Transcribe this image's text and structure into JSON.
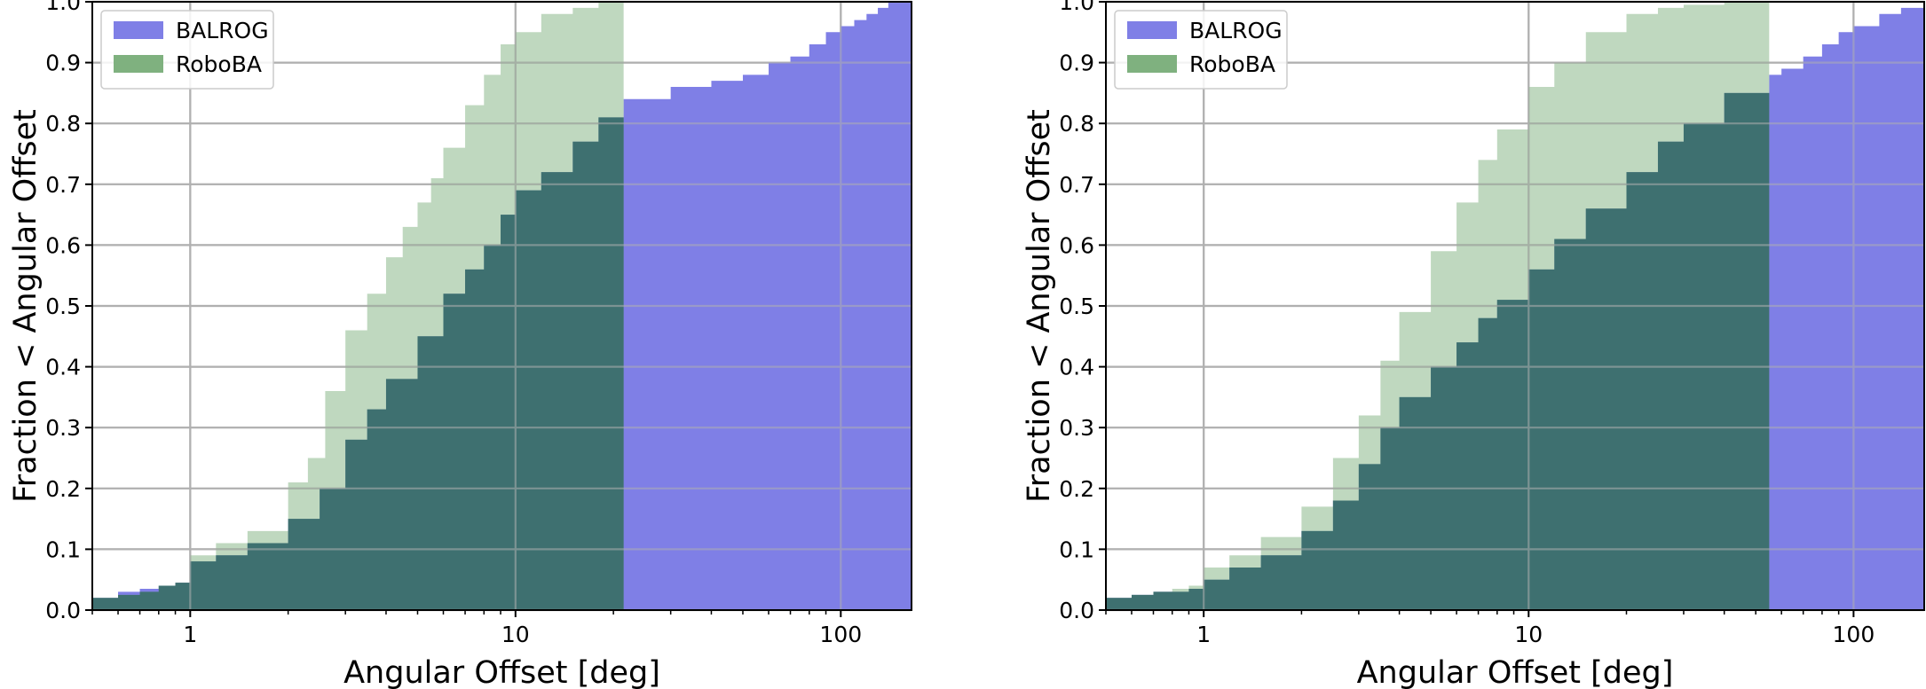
{
  "chart_data": [
    {
      "type": "area",
      "xlabel": "Angular Offset [deg]",
      "ylabel": "Fraction < Angular Offset",
      "xscale": "log",
      "xlim": [
        0.5,
        165
      ],
      "ylim": [
        0,
        1.0
      ],
      "xticks": [
        {
          "value": 1,
          "label": "1"
        },
        {
          "value": 10,
          "label": "10"
        },
        {
          "value": 100,
          "label": "100"
        }
      ],
      "yticks": [
        {
          "value": 0.0,
          "label": "0.0"
        },
        {
          "value": 0.1,
          "label": "0.1"
        },
        {
          "value": 0.2,
          "label": "0.2"
        },
        {
          "value": 0.3,
          "label": "0.3"
        },
        {
          "value": 0.4,
          "label": "0.4"
        },
        {
          "value": 0.5,
          "label": "0.5"
        },
        {
          "value": 0.6,
          "label": "0.6"
        },
        {
          "value": 0.7,
          "label": "0.7"
        },
        {
          "value": 0.8,
          "label": "0.8"
        },
        {
          "value": 0.9,
          "label": "0.9"
        },
        {
          "value": 1.0,
          "label": "1.0"
        }
      ],
      "grid": true,
      "legend_position": "top-left",
      "series": [
        {
          "name": "BALROG",
          "color": "#7f7fe6",
          "x": [
            0.5,
            0.6,
            0.7,
            0.8,
            0.9,
            1.0,
            1.2,
            1.5,
            2.0,
            2.5,
            3.0,
            3.5,
            4.0,
            5.0,
            6.0,
            7.0,
            8.0,
            9.0,
            10.0,
            12.0,
            15.0,
            18.0,
            21.5,
            30.0,
            40.0,
            50.0,
            60.0,
            70.0,
            80.0,
            90.0,
            100.0,
            110.0,
            120.0,
            130.0,
            140.0,
            150.0,
            165.0
          ],
          "y": [
            0.02,
            0.03,
            0.035,
            0.04,
            0.045,
            0.08,
            0.09,
            0.11,
            0.15,
            0.2,
            0.28,
            0.33,
            0.38,
            0.45,
            0.52,
            0.56,
            0.6,
            0.65,
            0.69,
            0.72,
            0.77,
            0.81,
            0.84,
            0.86,
            0.87,
            0.88,
            0.9,
            0.91,
            0.93,
            0.95,
            0.96,
            0.97,
            0.98,
            0.99,
            1.0,
            1.0,
            1.0
          ]
        },
        {
          "name": "RoboBA",
          "color": "#7fb17f",
          "x": [
            0.5,
            0.6,
            0.7,
            0.8,
            0.9,
            1.0,
            1.2,
            1.5,
            2.0,
            2.3,
            2.6,
            3.0,
            3.5,
            4.0,
            4.5,
            5.0,
            5.5,
            6.0,
            7.0,
            8.0,
            9.0,
            10.0,
            12.0,
            15.0,
            18.0,
            21.5
          ],
          "y": [
            0.02,
            0.025,
            0.03,
            0.04,
            0.045,
            0.09,
            0.11,
            0.13,
            0.21,
            0.25,
            0.36,
            0.46,
            0.52,
            0.58,
            0.63,
            0.67,
            0.71,
            0.76,
            0.83,
            0.88,
            0.93,
            0.95,
            0.98,
            0.99,
            1.0,
            1.0
          ]
        }
      ]
    },
    {
      "type": "area",
      "xlabel": "Angular Offset [deg]",
      "ylabel": "Fraction < Angular Offset",
      "xscale": "log",
      "xlim": [
        0.5,
        165
      ],
      "ylim": [
        0,
        1.0
      ],
      "xticks": [
        {
          "value": 1,
          "label": "1"
        },
        {
          "value": 10,
          "label": "10"
        },
        {
          "value": 100,
          "label": "100"
        }
      ],
      "yticks": [
        {
          "value": 0.0,
          "label": "0.0"
        },
        {
          "value": 0.1,
          "label": "0.1"
        },
        {
          "value": 0.2,
          "label": "0.2"
        },
        {
          "value": 0.3,
          "label": "0.3"
        },
        {
          "value": 0.4,
          "label": "0.4"
        },
        {
          "value": 0.5,
          "label": "0.5"
        },
        {
          "value": 0.6,
          "label": "0.6"
        },
        {
          "value": 0.7,
          "label": "0.7"
        },
        {
          "value": 0.8,
          "label": "0.8"
        },
        {
          "value": 0.9,
          "label": "0.9"
        },
        {
          "value": 1.0,
          "label": "1.0"
        }
      ],
      "grid": true,
      "legend_position": "top-left",
      "series": [
        {
          "name": "BALROG",
          "color": "#7f7fe6",
          "x": [
            0.5,
            0.6,
            0.7,
            0.8,
            0.9,
            1.0,
            1.2,
            1.5,
            2.0,
            2.5,
            3.0,
            3.5,
            4.0,
            5.0,
            6.0,
            7.0,
            8.0,
            10.0,
            12.0,
            15.0,
            20.0,
            25.0,
            30.0,
            40.0,
            55.0,
            60.0,
            70.0,
            80.0,
            90.0,
            100.0,
            120.0,
            140.0,
            165.0
          ],
          "y": [
            0.02,
            0.025,
            0.03,
            0.03,
            0.035,
            0.05,
            0.07,
            0.09,
            0.13,
            0.18,
            0.24,
            0.3,
            0.35,
            0.4,
            0.44,
            0.48,
            0.51,
            0.56,
            0.61,
            0.66,
            0.72,
            0.77,
            0.8,
            0.85,
            0.88,
            0.89,
            0.91,
            0.93,
            0.95,
            0.96,
            0.98,
            0.99,
            1.0
          ]
        },
        {
          "name": "RoboBA",
          "color": "#7fb17f",
          "x": [
            0.5,
            0.6,
            0.7,
            0.8,
            0.9,
            1.0,
            1.2,
            1.5,
            2.0,
            2.5,
            3.0,
            3.5,
            4.0,
            5.0,
            6.0,
            7.0,
            8.0,
            10.0,
            12.0,
            15.0,
            20.0,
            25.0,
            30.0,
            40.0,
            55.0
          ],
          "y": [
            0.02,
            0.025,
            0.03,
            0.035,
            0.04,
            0.07,
            0.09,
            0.12,
            0.17,
            0.25,
            0.32,
            0.41,
            0.49,
            0.59,
            0.67,
            0.74,
            0.79,
            0.86,
            0.9,
            0.95,
            0.98,
            0.99,
            0.995,
            1.0,
            1.0
          ]
        }
      ]
    }
  ]
}
